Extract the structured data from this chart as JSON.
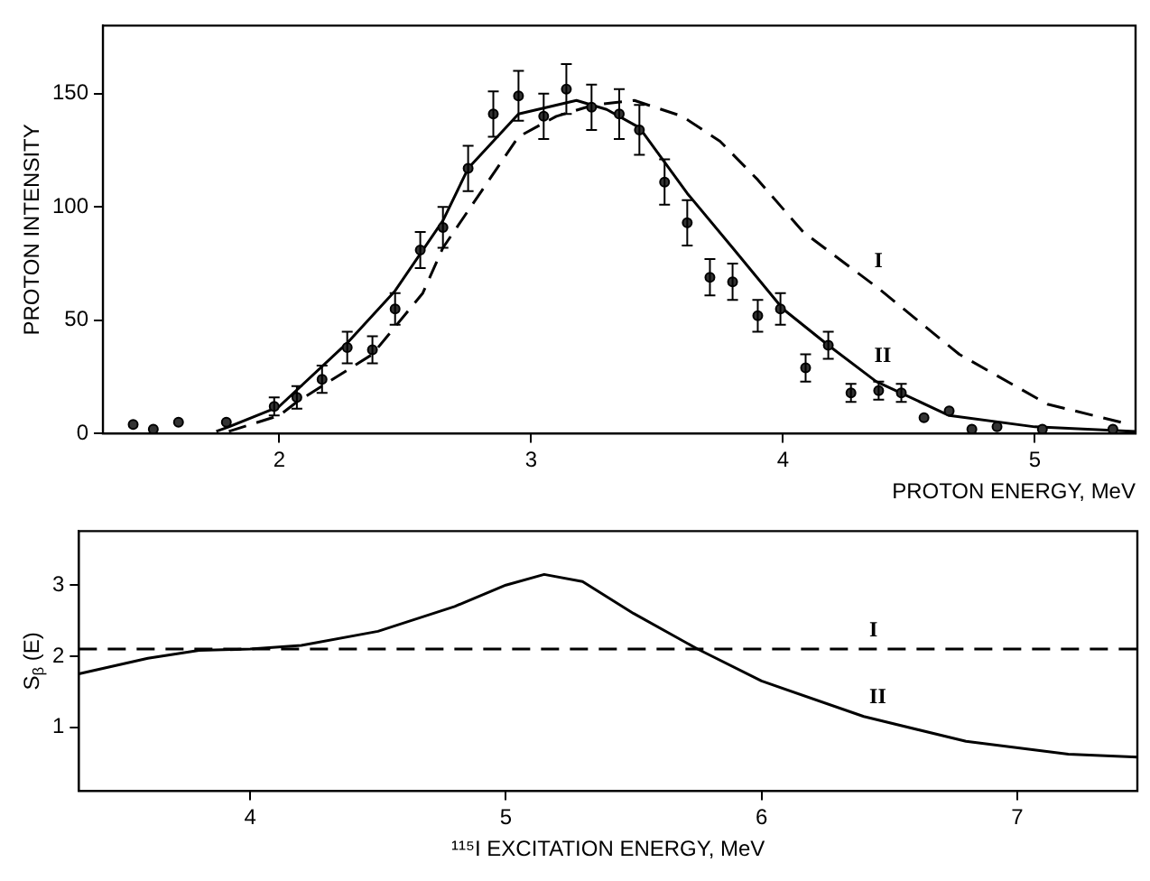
{
  "chart_data": [
    {
      "type": "line",
      "ylabel": "PROTON INTENSITY",
      "xlabel": "PROTON ENERGY, MeV",
      "xlim": [
        1.3,
        5.4
      ],
      "xticks": [
        2,
        3,
        4,
        5
      ],
      "ylim": [
        0,
        180
      ],
      "yticks": [
        0,
        50,
        100,
        150
      ],
      "grid": false,
      "legend": false,
      "series": [
        {
          "type": "scatter",
          "color": "#333333",
          "marker": "circle",
          "x": [
            1.42,
            1.5,
            1.6,
            1.79,
            1.98,
            2.07,
            2.17,
            2.27,
            2.37,
            2.46,
            2.56,
            2.65,
            2.75,
            2.85,
            2.95,
            3.05,
            3.14,
            3.24,
            3.35,
            3.43,
            3.53,
            3.62,
            3.71,
            3.8,
            3.9,
            3.99,
            4.09,
            4.18,
            4.27,
            4.38,
            4.47,
            4.56,
            4.66,
            4.75,
            4.85,
            5.03,
            5.31
          ],
          "values": [
            4,
            2,
            5,
            5,
            12,
            16,
            24,
            38,
            37,
            55,
            81,
            91,
            117,
            141,
            149,
            140,
            152,
            144,
            141,
            134,
            111,
            93,
            69,
            67,
            52,
            55,
            29,
            39,
            18,
            19,
            18,
            7,
            10,
            2,
            3,
            2,
            2
          ],
          "errors": [
            null,
            null,
            null,
            null,
            4,
            5,
            6,
            7,
            6,
            7,
            8,
            9,
            10,
            10,
            11,
            10,
            11,
            10,
            11,
            11,
            10,
            10,
            8,
            8,
            7,
            7,
            6,
            6,
            4,
            4,
            4,
            null,
            null,
            null,
            null,
            null,
            null
          ]
        },
        {
          "type": "line",
          "name": "I",
          "color": "#000000",
          "line_style": "dashed",
          "marker": "none",
          "x": [
            1.8,
            2.0,
            2.07,
            2.37,
            2.57,
            2.65,
            2.95,
            3.1,
            3.25,
            3.41,
            3.6,
            3.75,
            3.9,
            4.08,
            4.38,
            4.7,
            5.05,
            5.38
          ],
          "values": [
            1,
            8,
            14,
            35,
            62,
            82,
            131,
            140,
            145,
            147,
            140,
            129,
            112,
            89,
            64,
            35,
            13,
            4
          ]
        },
        {
          "type": "line",
          "name": "II",
          "color": "#000000",
          "line_style": "solid",
          "marker": "none",
          "x": [
            1.75,
            1.8,
            2.0,
            2.27,
            2.46,
            2.65,
            2.75,
            2.95,
            3.18,
            3.3,
            3.43,
            3.62,
            3.8,
            4.0,
            4.18,
            4.37,
            4.66,
            5.0,
            5.4
          ],
          "values": [
            1,
            3,
            12,
            40,
            63,
            94,
            117,
            141,
            147,
            143,
            135,
            106,
            82,
            55,
            39,
            23,
            8,
            3,
            1
          ]
        }
      ]
    },
    {
      "type": "line",
      "ylabel": "S$_{β}$ (E)",
      "xlabel": "¹¹⁵I EXCITATION ENERGY, MeV",
      "xlim": [
        3.33,
        7.47
      ],
      "xticks": [
        4,
        5,
        6,
        7
      ],
      "ylim": [
        0.1,
        3.76
      ],
      "yticks": [
        1,
        2,
        3
      ],
      "grid": false,
      "legend": false,
      "series": [
        {
          "type": "line",
          "name": "I",
          "color": "#000000",
          "line_style": "dashed",
          "marker": "none",
          "x": [
            3.33,
            7.47
          ],
          "values": [
            2.1,
            2.1
          ]
        },
        {
          "type": "line",
          "name": "II",
          "color": "#000000",
          "line_style": "solid",
          "marker": "none",
          "x": [
            3.33,
            3.6,
            3.8,
            4.0,
            4.2,
            4.5,
            4.8,
            5.0,
            5.15,
            5.3,
            5.5,
            5.75,
            6.0,
            6.4,
            6.8,
            7.2,
            7.47
          ],
          "values": [
            1.75,
            1.97,
            2.08,
            2.1,
            2.15,
            2.35,
            2.7,
            3.0,
            3.15,
            3.05,
            2.6,
            2.1,
            1.65,
            1.15,
            0.8,
            0.62,
            0.58
          ]
        }
      ]
    }
  ]
}
